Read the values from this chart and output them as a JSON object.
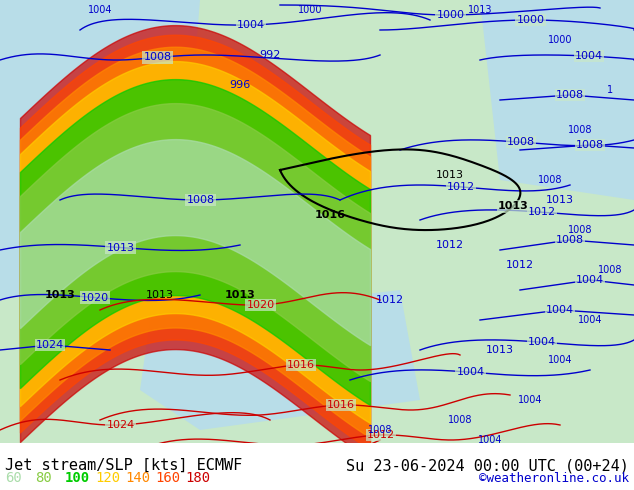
{
  "title_left": "Jet stream/SLP [kts] ECMWF",
  "title_right": "Su 23-06-2024 00:00 UTC (00+24)",
  "credit": "©weatheronline.co.uk",
  "legend_values": [
    60,
    80,
    100,
    120,
    140,
    160,
    180
  ],
  "legend_colors": [
    "#aaddaa",
    "#88cc44",
    "#00cc00",
    "#ffcc00",
    "#ff8800",
    "#ff4400",
    "#cc0000"
  ],
  "bg_color": "#c8e8c8",
  "land_color": "#d0d0c0",
  "sea_color": "#c8e8f8",
  "isobar_color_blue": "#0000cc",
  "isobar_color_black": "#000000",
  "isobar_color_red": "#cc0000",
  "text_color": "#000000",
  "title_fontsize": 11,
  "legend_fontsize": 10,
  "credit_color": "#0000cc",
  "fig_width": 6.34,
  "fig_height": 4.9,
  "dpi": 100
}
